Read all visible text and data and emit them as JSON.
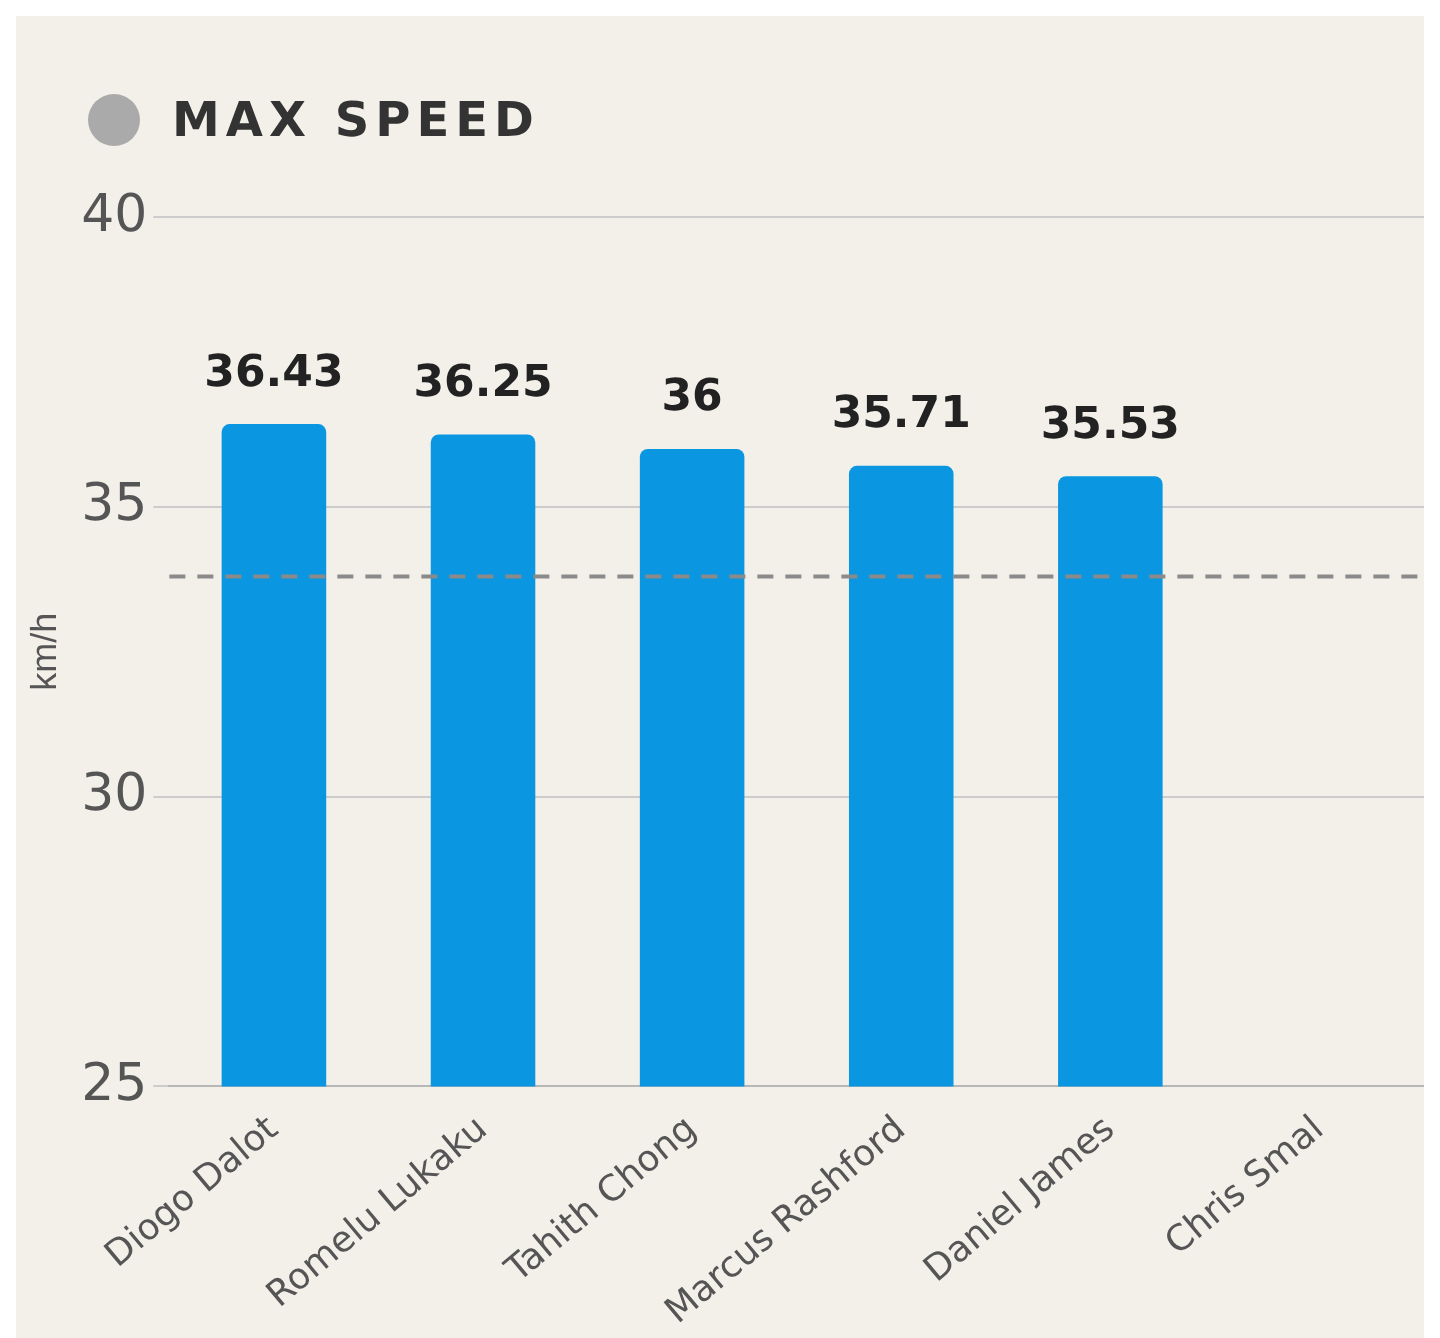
{
  "chart_data": {
    "type": "bar",
    "title": "MAX SPEED",
    "ylabel": "km/h",
    "categories": [
      "Diogo Dalot",
      "Romelu Lukaku",
      "Tahith Chong",
      "Marcus Rashford",
      "Daniel James",
      "Chris Smal"
    ],
    "values": [
      36.43,
      36.25,
      36,
      35.71,
      35.53,
      null
    ],
    "color": "#0a96e0",
    "ylim": [
      25,
      40
    ],
    "yticks": [
      25,
      30,
      35,
      40
    ],
    "grid": "y",
    "data_labels": true,
    "ref_lines": [
      {
        "axis": "y",
        "value": 33.8,
        "color": "#8a8a8a",
        "line_style": "dashed"
      }
    ]
  }
}
